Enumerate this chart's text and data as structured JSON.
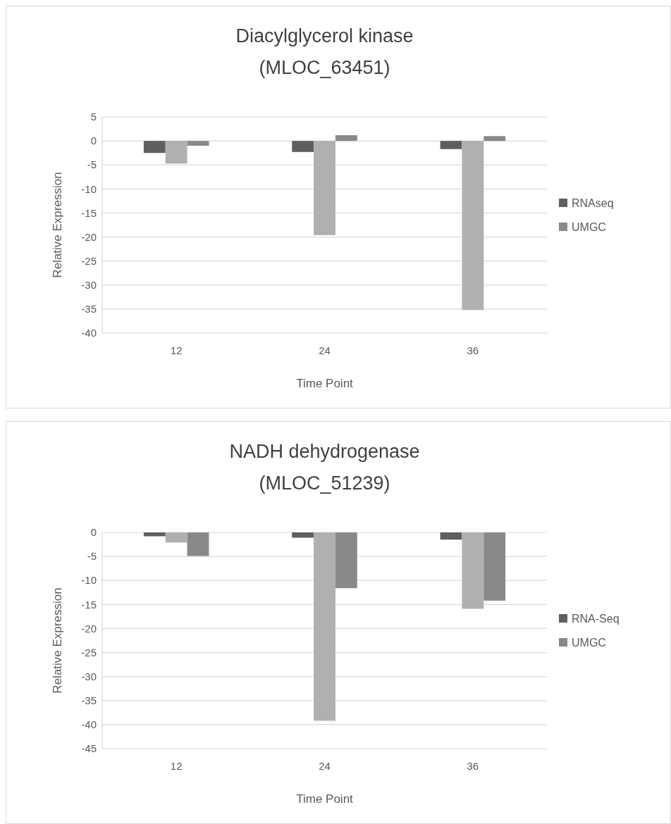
{
  "chart_data": [
    {
      "type": "bar",
      "title": "Diacylglycerol kinase\n(MLOC_63451)",
      "xlabel": "Time Point",
      "ylabel": "Relative Expression",
      "categories": [
        "12",
        "24",
        "36"
      ],
      "series": [
        {
          "name": "RNAseq",
          "color": "#5f5f5f",
          "values": [
            -2.5,
            -2.3,
            -1.7
          ]
        },
        {
          "color": "#b0b0b0",
          "values": [
            -4.7,
            -19.6,
            -35.2
          ]
        },
        {
          "name": "UMGC",
          "color": "#898989",
          "values": [
            -1.0,
            1.2,
            1.0
          ]
        }
      ],
      "ylim": [
        -40,
        5
      ],
      "yticks": [
        -40,
        -35,
        -30,
        -25,
        -20,
        -15,
        -10,
        -5,
        0,
        5
      ],
      "grid": "y",
      "legend": "right"
    },
    {
      "type": "bar",
      "title": "NADH dehydrogenase\n(MLOC_51239)",
      "xlabel": "Time Point",
      "ylabel": "Relative Expression",
      "categories": [
        "12",
        "24",
        "36"
      ],
      "series": [
        {
          "name": "RNA-Seq",
          "color": "#5f5f5f",
          "values": [
            -0.8,
            -1.1,
            -1.5
          ]
        },
        {
          "color": "#b0b0b0",
          "values": [
            -2.1,
            -39.2,
            -15.9
          ]
        },
        {
          "name": "UMGC",
          "color": "#898989",
          "values": [
            -4.9,
            -11.6,
            -14.2
          ]
        }
      ],
      "ylim": [
        -45,
        0
      ],
      "yticks": [
        -45,
        -40,
        -35,
        -30,
        -25,
        -20,
        -15,
        -10,
        -5,
        0
      ],
      "grid": "y",
      "legend": "right"
    }
  ]
}
